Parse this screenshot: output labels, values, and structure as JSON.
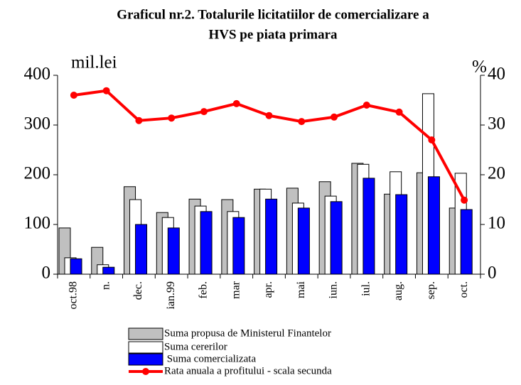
{
  "chart_data": {
    "type": "bar",
    "title": [
      "Graficul nr.2. Totalurile licitatiilor de comercializare a",
      "HVS pe piata primara"
    ],
    "y_label": "mil.lei",
    "y2_label": "%",
    "categories": [
      "oct.98",
      "n.",
      "dec.",
      "ian.99",
      "feb.",
      "mar",
      "apr.",
      "mai",
      "iun.",
      "iul.",
      "aug.",
      "sep.",
      "oct."
    ],
    "series": [
      {
        "name": "Suma propusa de Ministerul Finantelor",
        "color": "#c0c0c0",
        "values": [
          93,
          54,
          176,
          124,
          151,
          150,
          171,
          173,
          186,
          223,
          161,
          204,
          133
        ]
      },
      {
        "name": "Suma cererilor",
        "color": "#ffffff",
        "values": [
          33,
          19,
          150,
          114,
          137,
          126,
          171,
          143,
          157,
          221,
          206,
          363,
          203
        ]
      },
      {
        "name": " Suma comercializata",
        "color": "#0000ff",
        "values": [
          31,
          14,
          100,
          93,
          126,
          114,
          151,
          133,
          146,
          193,
          160,
          196,
          130
        ]
      },
      {
        "name": "Rata anuala a profitului - scala secunda",
        "color": "#ff0000",
        "type": "line",
        "axis": "y2",
        "values": [
          36,
          36.9,
          30.9,
          31.4,
          32.7,
          34.3,
          31.9,
          30.7,
          31.6,
          34,
          32.6,
          27,
          14.9
        ]
      }
    ],
    "ylim": [
      0,
      400
    ],
    "yticks": [
      0,
      100,
      200,
      300,
      400
    ],
    "y2lim": [
      0,
      40
    ],
    "y2ticks": [
      0,
      10,
      20,
      30,
      40
    ],
    "grid": false
  }
}
